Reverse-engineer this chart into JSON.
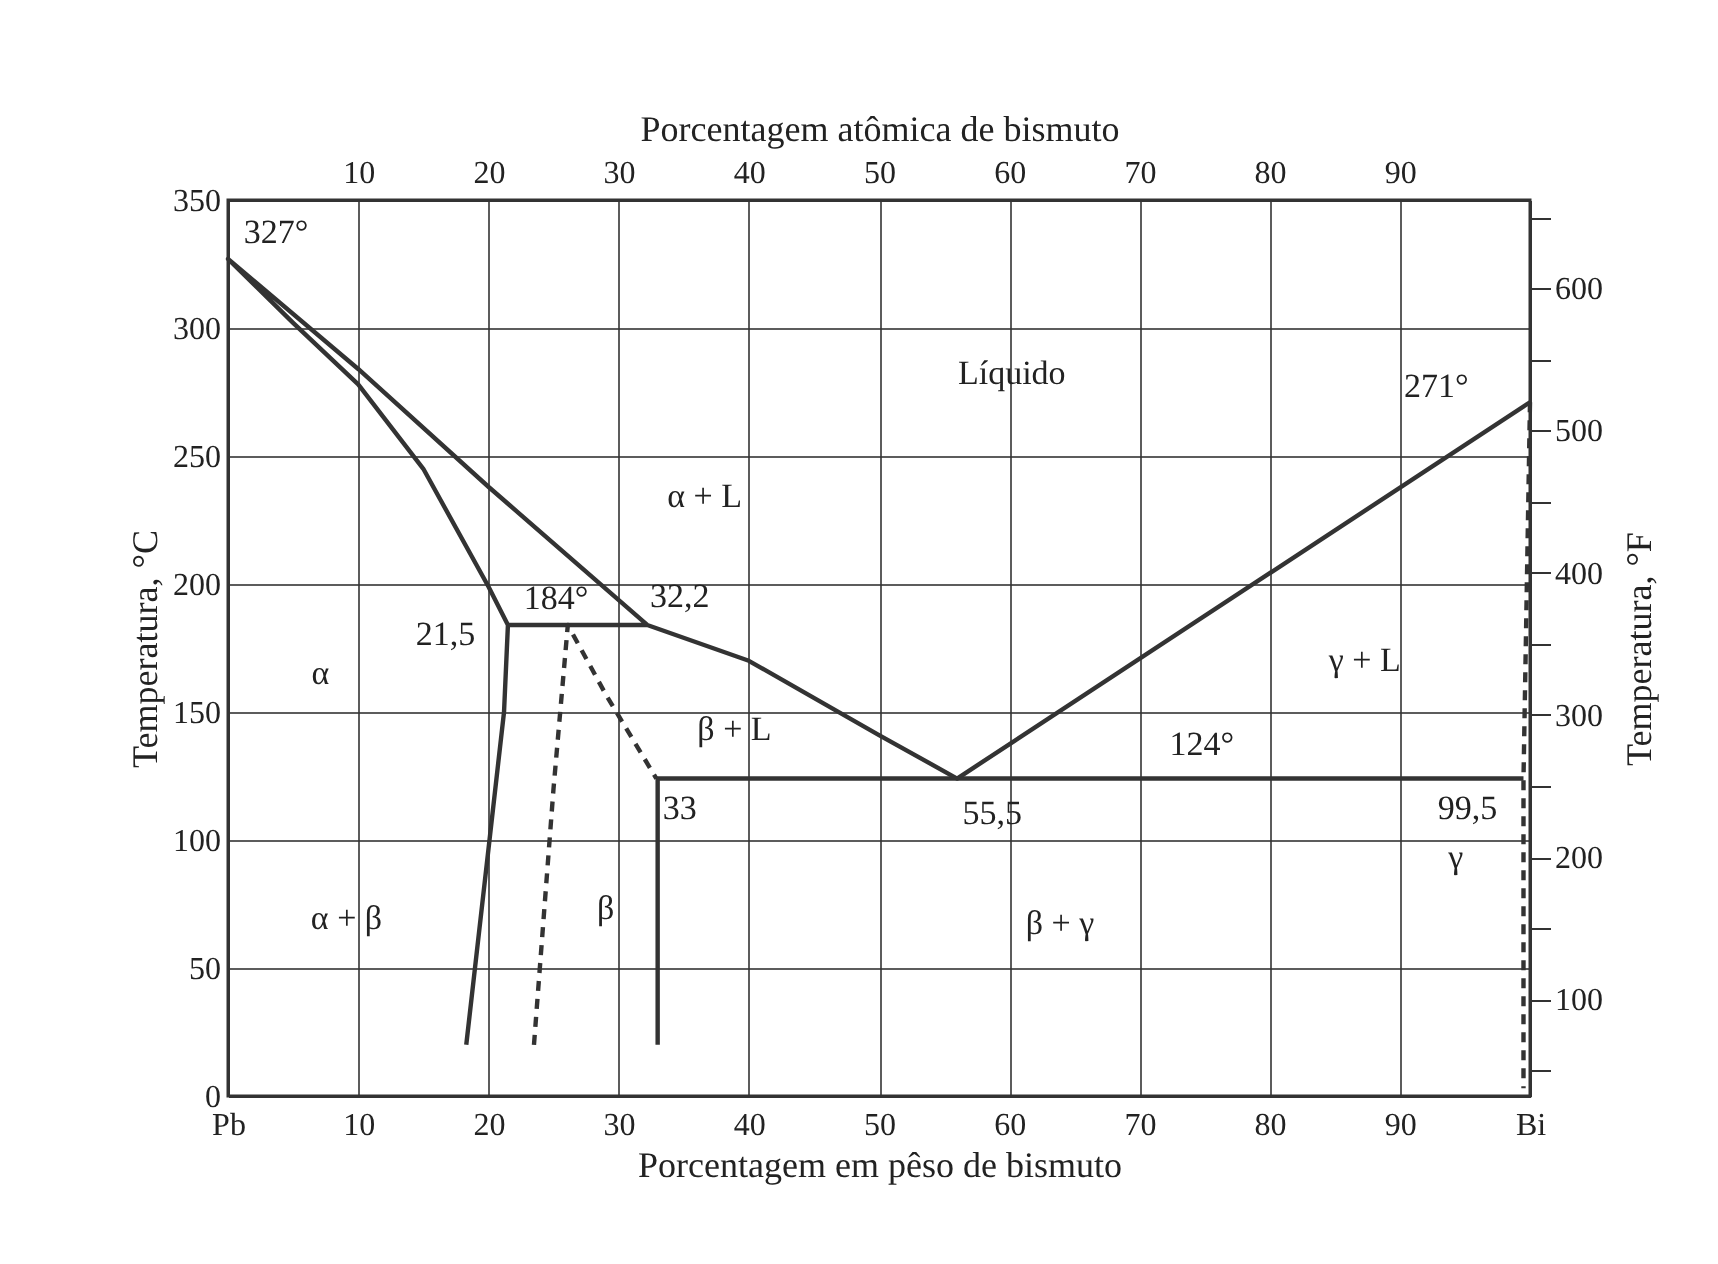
{
  "chart_data": {
    "type": "line",
    "xlabel": "Porcentagem em pêso de bismuto",
    "x2label": "Porcentagem atômica de bismuto",
    "ylabel": "Temperatura, °C",
    "y2label": "Temperatura, °F",
    "xlim": [
      0,
      100
    ],
    "xticks": [
      {
        "value": 0,
        "label": "Pb"
      },
      10,
      20,
      30,
      40,
      50,
      60,
      70,
      80,
      90,
      {
        "value": 100,
        "label": "Bi"
      }
    ],
    "x2lim": [
      0,
      100
    ],
    "x2ticks": [
      10,
      20,
      30,
      40,
      50,
      60,
      70,
      80,
      90
    ],
    "ylim": [
      0,
      350
    ],
    "yticks": [
      0,
      50,
      100,
      150,
      200,
      250,
      300,
      350
    ],
    "y2lim": [
      32,
      662
    ],
    "y2ticks": [
      {
        "value": 50,
        "label": null
      },
      100,
      {
        "value": 150,
        "label": null
      },
      200,
      {
        "value": 250,
        "label": null
      },
      300,
      {
        "value": 350,
        "label": null
      },
      400,
      {
        "value": 450,
        "label": null
      },
      500,
      {
        "value": 550,
        "label": null
      },
      600,
      {
        "value": 650,
        "label": null
      }
    ],
    "grid": true,
    "series": [
      {
        "type": "line",
        "color": "#333333",
        "line_style": "solid",
        "x": [
          18.3,
          21.2,
          21.5,
          32.2,
          20,
          10,
          0,
          5,
          10,
          15,
          20,
          21.5,
          32.2,
          40,
          50,
          56,
          100
        ],
        "values": [
          20,
          150,
          184,
          184,
          238,
          284,
          327,
          302,
          278,
          245,
          199,
          184,
          184,
          170,
          141,
          124,
          271
        ]
      },
      {
        "type": "line",
        "color": "#333333",
        "line_style": "solid",
        "x": [
          33,
          33,
          99.5
        ],
        "values": [
          20,
          124,
          124
        ]
      },
      {
        "type": "line",
        "color": "#333333",
        "line_style": "dashed",
        "x": [
          23.5,
          25,
          26.1,
          29,
          32.9
        ],
        "values": [
          20,
          120,
          184,
          157,
          124
        ]
      },
      {
        "type": "line",
        "color": "#333333",
        "line_style": "dashed",
        "x": [
          100,
          99.5,
          99.5
        ],
        "values": [
          271,
          124,
          3
        ]
      }
    ],
    "annotations": [
      "327°",
      "Líquido",
      "271°",
      "α + L",
      "21,5",
      "184°",
      "32,2",
      "α",
      "β + L",
      "33",
      "55,5",
      "124°",
      "99,5",
      "γ + L",
      "α + β",
      "β",
      "β + γ",
      "γ"
    ]
  }
}
